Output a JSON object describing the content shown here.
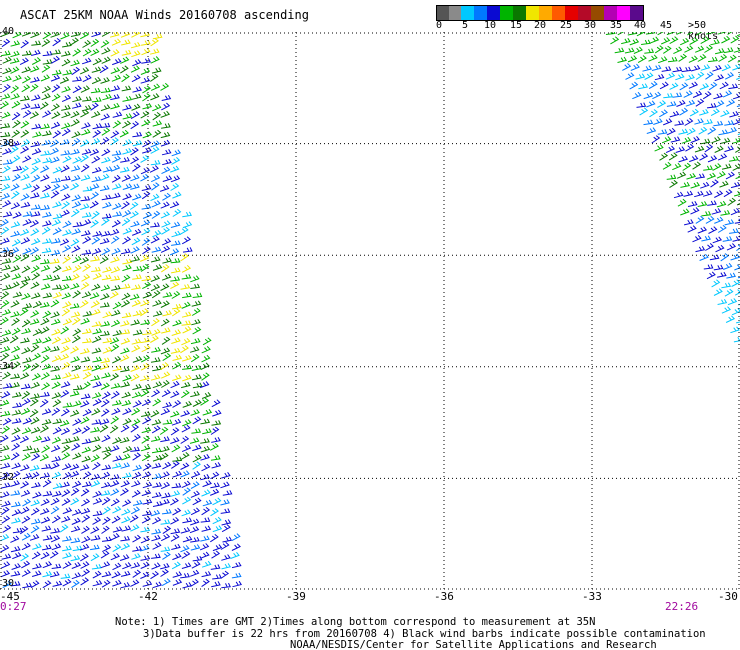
{
  "title": "ASCAT 25KM NOAA Winds 20160708 ascending",
  "colorbar": {
    "unit_label": ">50 knots",
    "labels": [
      "0",
      "5",
      "10",
      "15",
      "20",
      "25",
      "30",
      "35",
      "40",
      "45"
    ],
    "colors": [
      "#555555",
      "#8a8a8a",
      "#00c8ff",
      "#0078ff",
      "#0a0ad2",
      "#00b400",
      "#0a7800",
      "#f0e600",
      "#ffaa00",
      "#ff5a00",
      "#e60000",
      "#b40a28",
      "#964b00",
      "#b400b4",
      "#ff00ff",
      "#5a0a8c"
    ]
  },
  "map": {
    "lon_range": [
      -45,
      -30
    ],
    "lat_range": [
      30,
      40
    ],
    "lon_ticks": [
      {
        "value": -45,
        "label": "-45"
      },
      {
        "value": -42,
        "label": "-42"
      },
      {
        "value": -39,
        "label": "-39"
      },
      {
        "value": -36,
        "label": "-36"
      },
      {
        "value": -33,
        "label": "-33"
      },
      {
        "value": -30,
        "label": "-30"
      }
    ],
    "lat_ticks": [
      {
        "value": 40,
        "label": "40"
      },
      {
        "value": 38,
        "label": "38"
      },
      {
        "value": 36,
        "label": "36"
      },
      {
        "value": 34,
        "label": "34"
      },
      {
        "value": 32,
        "label": "32"
      },
      {
        "value": 30,
        "label": "30"
      }
    ],
    "gridlines": "dotted"
  },
  "swaths": {
    "left_time": "0:27",
    "right_time": "22:26"
  },
  "notes": {
    "line1": "Note: 1) Times are GMT 2)Times along bottom correspond to measurement at 35N",
    "line2": "3)Data buffer is 22 hrs from 20160708 4) Black wind barbs indicate possible contamination",
    "line3": "NOAA/NESDIS/Center for Satellite Applications and Research"
  }
}
